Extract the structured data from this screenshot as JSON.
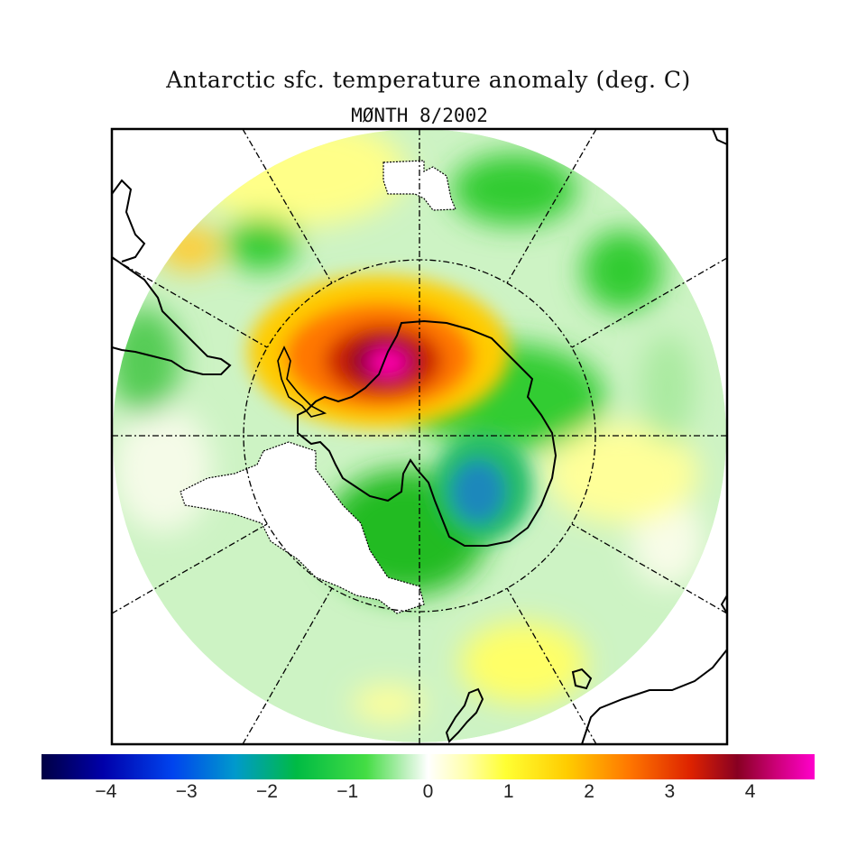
{
  "title": "Antarctic sfc. temperature anomaly (deg. C)",
  "subtitle": "MØNTH  8/2002",
  "colorbar": {
    "min": -4.8,
    "max": 4.8,
    "ticks": [
      {
        "value": -4,
        "label": "−4"
      },
      {
        "value": -3,
        "label": "−3"
      },
      {
        "value": -2,
        "label": "−2"
      },
      {
        "value": -1,
        "label": "−1"
      },
      {
        "value": 0,
        "label": "0"
      },
      {
        "value": 1,
        "label": "1"
      },
      {
        "value": 2,
        "label": "2"
      },
      {
        "value": 3,
        "label": "3"
      },
      {
        "value": 4,
        "label": "4"
      }
    ],
    "colors": [
      "#000055",
      "#0000cc",
      "#0070ee",
      "#00aa88",
      "#00cc00",
      "#66dd55",
      "#ffffff",
      "#ffff55",
      "#ffcc00",
      "#ff6600",
      "#cc2200",
      "#880022",
      "#ff00cc"
    ]
  },
  "map": {
    "projection": "south-polar-stereographic",
    "background_anomaly": "near zero (light green/white)",
    "features": [
      {
        "region": "Antarctic Peninsula / Weddell Sea",
        "anomaly_peak": 4.5
      },
      {
        "region": "East Antarctica interior",
        "anomaly_peak": -2.5
      },
      {
        "region": "Southern Ocean mid-latitudes",
        "anomaly_peak": -1.0
      },
      {
        "region": "South Pacific",
        "anomaly_peak": 1.0
      }
    ],
    "colors": {
      "frame": "#000000",
      "coast": "#000000",
      "no_data": "#ffffff"
    }
  }
}
